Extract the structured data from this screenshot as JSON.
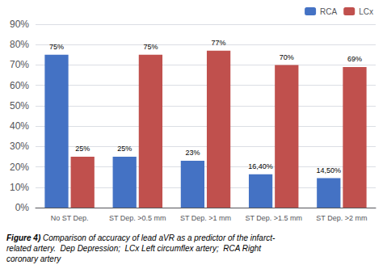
{
  "chart_data": {
    "type": "bar",
    "categories": [
      "No ST Dep.",
      "ST Dep. >0.5 mm",
      "ST Dep. >1 mm",
      "ST Dep. >1.5 mm",
      "ST Dep. >2 mm"
    ],
    "series": [
      {
        "name": "RCA",
        "color": "#4472C4",
        "values": [
          75,
          25,
          23,
          16.4,
          14.5
        ],
        "value_labels": [
          "75%",
          "25%",
          "23%",
          "16,40%",
          "14,50%"
        ]
      },
      {
        "name": "LCx",
        "color": "#C0504D",
        "values": [
          25,
          75,
          77,
          70,
          69
        ],
        "value_labels": [
          "25%",
          "75%",
          "77%",
          "70%",
          "69%"
        ]
      }
    ],
    "ylim": [
      0,
      90
    ],
    "yticks": [
      {
        "value": 0,
        "label": "0%"
      },
      {
        "value": 10,
        "label": "10%"
      },
      {
        "value": 20,
        "label": "20%"
      },
      {
        "value": 30,
        "label": "30%"
      },
      {
        "value": 40,
        "label": "40%"
      },
      {
        "value": 50,
        "label": "50%"
      },
      {
        "value": 60,
        "label": "60%"
      },
      {
        "value": 70,
        "label": "70%"
      },
      {
        "value": 80,
        "label": "80%"
      },
      {
        "value": 90,
        "label": "90%"
      }
    ],
    "grid": true,
    "legend": "upper right",
    "data_labels": true,
    "annotations": [
      "Figure 4)",
      "Comparison of accuracy of lead aVR as a predictor of the infarct-\nrelated artery.  Dep Depression;  LCx Left circumflex artery;  RCA Right\ncoronary artery"
    ]
  }
}
